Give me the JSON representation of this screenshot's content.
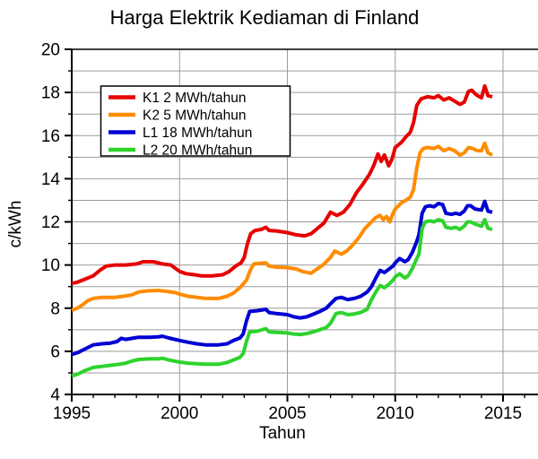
{
  "chart_data": {
    "type": "line",
    "title": "Harga Elektrik Kediaman di Finland",
    "xlabel": "Tahun",
    "ylabel": "c/kWh",
    "xlim": [
      1995,
      2016.6
    ],
    "ylim": [
      4,
      20
    ],
    "xticks_major": [
      1995,
      2000,
      2005,
      2010,
      2015
    ],
    "xtick_minor_step": 1,
    "yticks_major": [
      4,
      6,
      8,
      10,
      12,
      14,
      16,
      18,
      20
    ],
    "ytick_minor_step": 1,
    "grid": {
      "vertical_at": [
        2000,
        2005,
        2010,
        2015
      ],
      "horizontal_step": 1,
      "color": "#9b9b9b"
    },
    "legend_position": "top-left",
    "axis_color": "#000000",
    "background": "#ffffff",
    "series": [
      {
        "name": "K1 2 MWh/tahun",
        "color": "#e60000",
        "points": [
          [
            1995.0,
            9.15
          ],
          [
            1995.25,
            9.2
          ],
          [
            1995.5,
            9.3
          ],
          [
            1995.75,
            9.4
          ],
          [
            1996.0,
            9.5
          ],
          [
            1996.3,
            9.75
          ],
          [
            1996.6,
            9.95
          ],
          [
            1997.0,
            10.0
          ],
          [
            1997.5,
            10.0
          ],
          [
            1998.0,
            10.05
          ],
          [
            1998.3,
            10.15
          ],
          [
            1998.8,
            10.15
          ],
          [
            1999.2,
            10.05
          ],
          [
            1999.6,
            10.0
          ],
          [
            1999.8,
            9.85
          ],
          [
            2000.0,
            9.7
          ],
          [
            2000.3,
            9.6
          ],
          [
            2000.7,
            9.55
          ],
          [
            2001.0,
            9.5
          ],
          [
            2001.5,
            9.5
          ],
          [
            2002.0,
            9.55
          ],
          [
            2002.3,
            9.7
          ],
          [
            2002.6,
            9.95
          ],
          [
            2002.85,
            10.1
          ],
          [
            2003.0,
            10.35
          ],
          [
            2003.15,
            11.0
          ],
          [
            2003.3,
            11.45
          ],
          [
            2003.5,
            11.6
          ],
          [
            2003.8,
            11.65
          ],
          [
            2004.0,
            11.75
          ],
          [
            2004.15,
            11.6
          ],
          [
            2004.5,
            11.58
          ],
          [
            2005.0,
            11.5
          ],
          [
            2005.4,
            11.4
          ],
          [
            2005.8,
            11.35
          ],
          [
            2006.1,
            11.45
          ],
          [
            2006.4,
            11.7
          ],
          [
            2006.7,
            11.95
          ],
          [
            2007.0,
            12.45
          ],
          [
            2007.3,
            12.3
          ],
          [
            2007.6,
            12.45
          ],
          [
            2007.9,
            12.8
          ],
          [
            2008.2,
            13.35
          ],
          [
            2008.5,
            13.75
          ],
          [
            2008.8,
            14.2
          ],
          [
            2009.0,
            14.6
          ],
          [
            2009.2,
            15.15
          ],
          [
            2009.35,
            14.8
          ],
          [
            2009.5,
            15.1
          ],
          [
            2009.7,
            14.6
          ],
          [
            2009.85,
            14.9
          ],
          [
            2010.0,
            15.45
          ],
          [
            2010.3,
            15.7
          ],
          [
            2010.5,
            15.95
          ],
          [
            2010.7,
            16.15
          ],
          [
            2010.85,
            16.6
          ],
          [
            2011.0,
            17.4
          ],
          [
            2011.2,
            17.7
          ],
          [
            2011.5,
            17.8
          ],
          [
            2011.8,
            17.75
          ],
          [
            2012.0,
            17.85
          ],
          [
            2012.25,
            17.65
          ],
          [
            2012.5,
            17.75
          ],
          [
            2012.75,
            17.6
          ],
          [
            2013.0,
            17.45
          ],
          [
            2013.2,
            17.55
          ],
          [
            2013.4,
            18.05
          ],
          [
            2013.55,
            18.1
          ],
          [
            2013.75,
            17.9
          ],
          [
            2014.0,
            17.75
          ],
          [
            2014.15,
            18.3
          ],
          [
            2014.3,
            17.85
          ],
          [
            2014.5,
            17.8
          ]
        ]
      },
      {
        "name": "K2 5 MWh/tahun",
        "color": "#ff8c00",
        "points": [
          [
            1995.0,
            7.9
          ],
          [
            1995.25,
            8.0
          ],
          [
            1995.5,
            8.15
          ],
          [
            1995.75,
            8.35
          ],
          [
            1996.0,
            8.45
          ],
          [
            1996.4,
            8.5
          ],
          [
            1997.0,
            8.5
          ],
          [
            1997.4,
            8.55
          ],
          [
            1997.8,
            8.62
          ],
          [
            1998.1,
            8.75
          ],
          [
            1998.5,
            8.8
          ],
          [
            1999.0,
            8.82
          ],
          [
            1999.4,
            8.78
          ],
          [
            1999.8,
            8.72
          ],
          [
            2000.0,
            8.65
          ],
          [
            2000.4,
            8.55
          ],
          [
            2000.8,
            8.5
          ],
          [
            2001.2,
            8.45
          ],
          [
            2001.8,
            8.45
          ],
          [
            2002.2,
            8.55
          ],
          [
            2002.5,
            8.7
          ],
          [
            2002.85,
            9.0
          ],
          [
            2003.1,
            9.3
          ],
          [
            2003.3,
            9.8
          ],
          [
            2003.45,
            10.05
          ],
          [
            2003.7,
            10.08
          ],
          [
            2004.0,
            10.1
          ],
          [
            2004.15,
            9.95
          ],
          [
            2004.5,
            9.9
          ],
          [
            2005.0,
            9.88
          ],
          [
            2005.4,
            9.82
          ],
          [
            2005.7,
            9.7
          ],
          [
            2006.1,
            9.62
          ],
          [
            2006.35,
            9.8
          ],
          [
            2006.65,
            10.0
          ],
          [
            2007.0,
            10.35
          ],
          [
            2007.2,
            10.65
          ],
          [
            2007.5,
            10.5
          ],
          [
            2007.75,
            10.65
          ],
          [
            2008.0,
            10.9
          ],
          [
            2008.3,
            11.25
          ],
          [
            2008.6,
            11.7
          ],
          [
            2008.9,
            12.0
          ],
          [
            2009.1,
            12.2
          ],
          [
            2009.3,
            12.3
          ],
          [
            2009.45,
            12.1
          ],
          [
            2009.6,
            12.25
          ],
          [
            2009.75,
            12.0
          ],
          [
            2009.9,
            12.4
          ],
          [
            2010.0,
            12.6
          ],
          [
            2010.3,
            12.9
          ],
          [
            2010.5,
            13.0
          ],
          [
            2010.7,
            13.15
          ],
          [
            2010.85,
            13.5
          ],
          [
            2011.0,
            14.5
          ],
          [
            2011.15,
            15.2
          ],
          [
            2011.3,
            15.4
          ],
          [
            2011.5,
            15.45
          ],
          [
            2011.8,
            15.4
          ],
          [
            2012.0,
            15.5
          ],
          [
            2012.25,
            15.3
          ],
          [
            2012.5,
            15.4
          ],
          [
            2012.75,
            15.3
          ],
          [
            2013.0,
            15.1
          ],
          [
            2013.2,
            15.2
          ],
          [
            2013.4,
            15.45
          ],
          [
            2013.6,
            15.4
          ],
          [
            2013.8,
            15.3
          ],
          [
            2014.0,
            15.3
          ],
          [
            2014.15,
            15.65
          ],
          [
            2014.3,
            15.2
          ],
          [
            2014.5,
            15.1
          ]
        ]
      },
      {
        "name": "L1 18 MWh/tahun",
        "color": "#0000d2",
        "points": [
          [
            1995.0,
            5.85
          ],
          [
            1995.3,
            5.95
          ],
          [
            1995.6,
            6.1
          ],
          [
            1996.0,
            6.3
          ],
          [
            1996.4,
            6.35
          ],
          [
            1996.8,
            6.38
          ],
          [
            1997.1,
            6.45
          ],
          [
            1997.3,
            6.6
          ],
          [
            1997.5,
            6.55
          ],
          [
            1997.8,
            6.6
          ],
          [
            1998.1,
            6.65
          ],
          [
            1998.6,
            6.65
          ],
          [
            1999.0,
            6.67
          ],
          [
            1999.2,
            6.7
          ],
          [
            1999.5,
            6.62
          ],
          [
            2000.0,
            6.5
          ],
          [
            2000.4,
            6.42
          ],
          [
            2000.8,
            6.35
          ],
          [
            2001.2,
            6.3
          ],
          [
            2001.8,
            6.3
          ],
          [
            2002.2,
            6.35
          ],
          [
            2002.5,
            6.5
          ],
          [
            2002.8,
            6.62
          ],
          [
            2002.95,
            6.8
          ],
          [
            2003.1,
            7.4
          ],
          [
            2003.25,
            7.85
          ],
          [
            2003.6,
            7.88
          ],
          [
            2004.0,
            7.95
          ],
          [
            2004.15,
            7.8
          ],
          [
            2004.5,
            7.75
          ],
          [
            2005.0,
            7.7
          ],
          [
            2005.3,
            7.6
          ],
          [
            2005.6,
            7.55
          ],
          [
            2005.9,
            7.6
          ],
          [
            2006.2,
            7.72
          ],
          [
            2006.5,
            7.85
          ],
          [
            2006.8,
            8.0
          ],
          [
            2007.0,
            8.2
          ],
          [
            2007.25,
            8.45
          ],
          [
            2007.5,
            8.5
          ],
          [
            2007.8,
            8.4
          ],
          [
            2008.1,
            8.45
          ],
          [
            2008.4,
            8.55
          ],
          [
            2008.7,
            8.75
          ],
          [
            2008.9,
            9.0
          ],
          [
            2009.1,
            9.4
          ],
          [
            2009.3,
            9.75
          ],
          [
            2009.5,
            9.65
          ],
          [
            2009.7,
            9.8
          ],
          [
            2009.9,
            9.95
          ],
          [
            2010.0,
            10.1
          ],
          [
            2010.2,
            10.3
          ],
          [
            2010.45,
            10.15
          ],
          [
            2010.6,
            10.25
          ],
          [
            2010.8,
            10.6
          ],
          [
            2011.0,
            11.1
          ],
          [
            2011.1,
            11.4
          ],
          [
            2011.25,
            12.4
          ],
          [
            2011.4,
            12.7
          ],
          [
            2011.6,
            12.75
          ],
          [
            2011.8,
            12.7
          ],
          [
            2012.0,
            12.85
          ],
          [
            2012.2,
            12.8
          ],
          [
            2012.35,
            12.4
          ],
          [
            2012.6,
            12.35
          ],
          [
            2012.8,
            12.4
          ],
          [
            2013.0,
            12.35
          ],
          [
            2013.2,
            12.5
          ],
          [
            2013.35,
            12.75
          ],
          [
            2013.5,
            12.75
          ],
          [
            2013.7,
            12.6
          ],
          [
            2014.0,
            12.55
          ],
          [
            2014.15,
            12.95
          ],
          [
            2014.3,
            12.5
          ],
          [
            2014.5,
            12.45
          ]
        ]
      },
      {
        "name": "L2 20 MWh/tahun",
        "color": "#2ed32e",
        "points": [
          [
            1995.0,
            4.85
          ],
          [
            1995.3,
            4.95
          ],
          [
            1995.6,
            5.1
          ],
          [
            1996.0,
            5.25
          ],
          [
            1996.4,
            5.3
          ],
          [
            1996.8,
            5.35
          ],
          [
            1997.2,
            5.4
          ],
          [
            1997.5,
            5.45
          ],
          [
            1997.8,
            5.55
          ],
          [
            1998.1,
            5.62
          ],
          [
            1998.6,
            5.65
          ],
          [
            1999.0,
            5.65
          ],
          [
            1999.2,
            5.68
          ],
          [
            1999.5,
            5.6
          ],
          [
            2000.0,
            5.5
          ],
          [
            2000.4,
            5.45
          ],
          [
            2000.8,
            5.42
          ],
          [
            2001.2,
            5.4
          ],
          [
            2001.8,
            5.4
          ],
          [
            2002.2,
            5.48
          ],
          [
            2002.5,
            5.6
          ],
          [
            2002.8,
            5.72
          ],
          [
            2002.95,
            5.9
          ],
          [
            2003.1,
            6.45
          ],
          [
            2003.25,
            6.9
          ],
          [
            2003.6,
            6.93
          ],
          [
            2004.0,
            7.05
          ],
          [
            2004.15,
            6.9
          ],
          [
            2004.5,
            6.88
          ],
          [
            2005.0,
            6.85
          ],
          [
            2005.3,
            6.8
          ],
          [
            2005.6,
            6.78
          ],
          [
            2005.9,
            6.82
          ],
          [
            2006.2,
            6.9
          ],
          [
            2006.5,
            7.0
          ],
          [
            2006.8,
            7.1
          ],
          [
            2007.0,
            7.3
          ],
          [
            2007.25,
            7.75
          ],
          [
            2007.5,
            7.8
          ],
          [
            2007.8,
            7.7
          ],
          [
            2008.1,
            7.73
          ],
          [
            2008.4,
            7.8
          ],
          [
            2008.7,
            7.95
          ],
          [
            2008.9,
            8.4
          ],
          [
            2009.1,
            8.75
          ],
          [
            2009.3,
            9.05
          ],
          [
            2009.5,
            8.95
          ],
          [
            2009.7,
            9.1
          ],
          [
            2009.9,
            9.3
          ],
          [
            2010.0,
            9.45
          ],
          [
            2010.2,
            9.6
          ],
          [
            2010.45,
            9.4
          ],
          [
            2010.6,
            9.5
          ],
          [
            2010.8,
            9.85
          ],
          [
            2011.0,
            10.3
          ],
          [
            2011.1,
            10.5
          ],
          [
            2011.25,
            11.7
          ],
          [
            2011.4,
            12.0
          ],
          [
            2011.6,
            12.05
          ],
          [
            2011.8,
            12.0
          ],
          [
            2012.0,
            12.1
          ],
          [
            2012.2,
            12.05
          ],
          [
            2012.35,
            11.75
          ],
          [
            2012.6,
            11.7
          ],
          [
            2012.8,
            11.75
          ],
          [
            2013.0,
            11.65
          ],
          [
            2013.2,
            11.8
          ],
          [
            2013.35,
            12.0
          ],
          [
            2013.5,
            12.0
          ],
          [
            2013.7,
            11.9
          ],
          [
            2014.0,
            11.8
          ],
          [
            2014.15,
            12.1
          ],
          [
            2014.3,
            11.7
          ],
          [
            2014.5,
            11.65
          ]
        ]
      }
    ]
  }
}
